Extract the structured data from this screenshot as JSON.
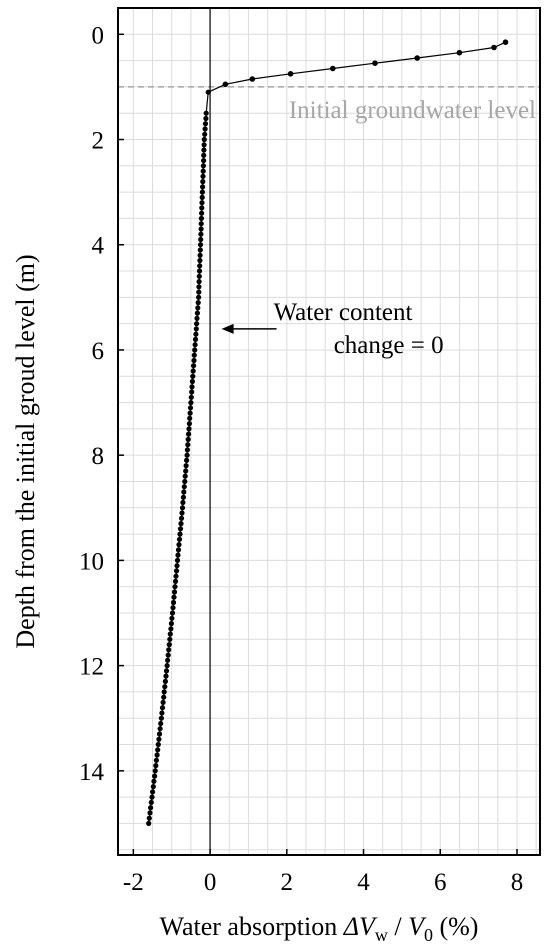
{
  "chart_data": {
    "type": "scatter",
    "xlabel_parts": {
      "prefix": "Water absorption ",
      "delta_v": "ΔV",
      "sub_w": "w",
      "slash": " / ",
      "v": "V",
      "sub_0": "0",
      "unit": " (%)"
    },
    "ylabel": "Depth from the initial groud level (m)",
    "xlim": [
      -2.4,
      8.6
    ],
    "ylim": [
      -0.5,
      15.6
    ],
    "y_inverted": true,
    "grid": true,
    "x_ticks": [
      -2,
      0,
      2,
      4,
      6,
      8
    ],
    "x_tick_labels": [
      "-2",
      "0",
      "2",
      "4",
      "6",
      "8"
    ],
    "y_ticks": [
      0,
      2,
      4,
      6,
      8,
      10,
      12,
      14
    ],
    "y_tick_labels": [
      "0",
      "2",
      "4",
      "6",
      "8",
      "10",
      "12",
      "14"
    ],
    "series": [
      {
        "values": [
          [
            7.7,
            0.15
          ],
          [
            7.4,
            0.25
          ],
          [
            6.5,
            0.35
          ],
          [
            5.4,
            0.45
          ],
          [
            4.3,
            0.55
          ],
          [
            3.2,
            0.65
          ],
          [
            2.1,
            0.75
          ],
          [
            1.1,
            0.85
          ],
          [
            0.4,
            0.95
          ],
          [
            -0.05,
            1.1
          ],
          [
            -0.1,
            1.5
          ],
          [
            -0.15,
            2.0
          ],
          [
            -0.2,
            3.0
          ],
          [
            -0.25,
            4.0
          ],
          [
            -0.3,
            5.0
          ],
          [
            -0.4,
            6.0
          ],
          [
            -0.5,
            7.0
          ],
          [
            -0.6,
            8.0
          ],
          [
            -0.72,
            9.0
          ],
          [
            -0.85,
            10.0
          ],
          [
            -0.98,
            11.0
          ],
          [
            -1.12,
            12.0
          ],
          [
            -1.27,
            13.0
          ],
          [
            -1.43,
            14.0
          ],
          [
            -1.6,
            15.0
          ]
        ]
      }
    ],
    "annotations": {
      "groundwater_label": "Initial groundwater level",
      "groundwater_depth": 1.0,
      "zero_line_x": 0,
      "arrow_text_line1": "Water content",
      "arrow_text_line2": "change = 0",
      "arrow_target": [
        0.3,
        5.6
      ]
    }
  }
}
